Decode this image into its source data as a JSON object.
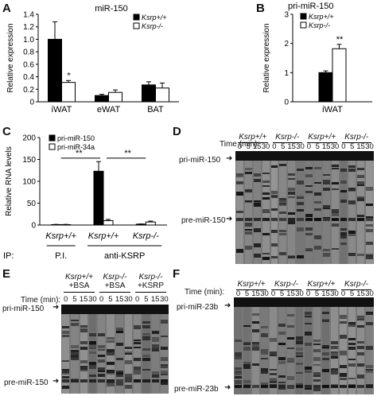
{
  "panels": {
    "A": {
      "letter": "A"
    },
    "B": {
      "letter": "B"
    },
    "C": {
      "letter": "C"
    },
    "D": {
      "letter": "D"
    },
    "E": {
      "letter": "E"
    },
    "F": {
      "letter": "F"
    }
  },
  "chart_data": [
    {
      "type": "bar",
      "panel": "A",
      "title": "miR-150",
      "ylabel": "Relative expression",
      "categories": [
        "iWAT",
        "eWAT",
        "BAT"
      ],
      "series": [
        {
          "name": "Ksrp+/+",
          "values": [
            1.0,
            0.1,
            0.27
          ],
          "errors": [
            0.28,
            0.02,
            0.05
          ],
          "color": "#000000"
        },
        {
          "name": "Ksrp-/-",
          "values": [
            0.31,
            0.15,
            0.22
          ],
          "errors": [
            0.03,
            0.04,
            0.08
          ],
          "color": "#ffffff"
        }
      ],
      "yticks": [
        "0",
        "0.2",
        "0.4",
        "0.6",
        "0.8",
        "1.0",
        "1.2",
        "1.4"
      ],
      "ylim": [
        0,
        1.4
      ],
      "legend": [
        "Ksrp+/+",
        "Ksrp-/-"
      ],
      "annotations": [
        "*"
      ]
    },
    {
      "type": "bar",
      "panel": "B",
      "title": "pri-miR-150",
      "ylabel": "Relative expression",
      "categories": [
        "iWAT"
      ],
      "series": [
        {
          "name": "Ksrp+/+",
          "values": [
            1.0
          ],
          "errors": [
            0.06
          ],
          "color": "#000000"
        },
        {
          "name": "Ksrp-/-",
          "values": [
            1.82
          ],
          "errors": [
            0.15
          ],
          "color": "#ffffff"
        }
      ],
      "yticks": [
        "0",
        "1",
        "2",
        "3"
      ],
      "ylim": [
        0,
        3
      ],
      "legend": [
        "Ksrp+/+",
        "Ksrp-/-"
      ],
      "annotations": [
        "**"
      ]
    },
    {
      "type": "bar",
      "panel": "C",
      "ylabel": "Relative RNA levels",
      "categories": [
        "Ksrp+/+",
        "Ksrp+/+",
        "Ksrp-/-"
      ],
      "series": [
        {
          "name": "pri-miR-150",
          "values": [
            1,
            123,
            2
          ],
          "errors": [
            0.5,
            22,
            0.5
          ],
          "color": "#000000"
        },
        {
          "name": "pri-miR-34a",
          "values": [
            1,
            10,
            7
          ],
          "errors": [
            0.5,
            3,
            2
          ],
          "color": "#ffffff"
        }
      ],
      "yticks": [
        "0",
        "50",
        "100",
        "150",
        "200"
      ],
      "ylim": [
        0,
        200
      ],
      "legend": [
        "pri-miR-150",
        "pri-miR-34a"
      ],
      "annotations": [
        "**",
        "**"
      ],
      "ip_label": "IP:",
      "ip_groups": [
        "P.I.",
        "anti-KSRP"
      ]
    }
  ],
  "gels": {
    "D": {
      "time_label": "Time (min):",
      "genotypes": [
        "Ksrp+/+",
        "Ksrp-/-",
        "Ksrp+/+",
        "Ksrp-/-"
      ],
      "times": [
        "0",
        "5",
        "15",
        "30",
        "0",
        "5",
        "15",
        "30",
        "0",
        "5",
        "15",
        "30",
        "0",
        "5",
        "15",
        "30"
      ],
      "bands": [
        "pri-miR-150",
        "pre-miR-150"
      ]
    },
    "E": {
      "time_label": "Time (min):",
      "conditions": [
        {
          "genotype": "Ksrp+/+",
          "treatment": "+BSA"
        },
        {
          "genotype": "Ksrp-/-",
          "treatment": "+BSA"
        },
        {
          "genotype": "Ksrp-/-",
          "treatment": "+KSRP"
        }
      ],
      "times": [
        "0",
        "5",
        "15",
        "30",
        "0",
        "5",
        "15",
        "30",
        "0",
        "5",
        "15",
        "30"
      ],
      "bands": [
        "pri-miR-150",
        "pre-miR-150"
      ]
    },
    "F": {
      "time_label": "Time (min):",
      "genotypes": [
        "Ksrp+/+",
        "Ksrp-/-",
        "Ksrp+/+",
        "Ksrp-/-"
      ],
      "times": [
        "0",
        "5",
        "15",
        "30",
        "0",
        "5",
        "15",
        "30",
        "0",
        "5",
        "15",
        "30",
        "0",
        "5",
        "15",
        "30"
      ],
      "bands": [
        "pri-miR-23b",
        "pre-miR-23b"
      ]
    }
  }
}
